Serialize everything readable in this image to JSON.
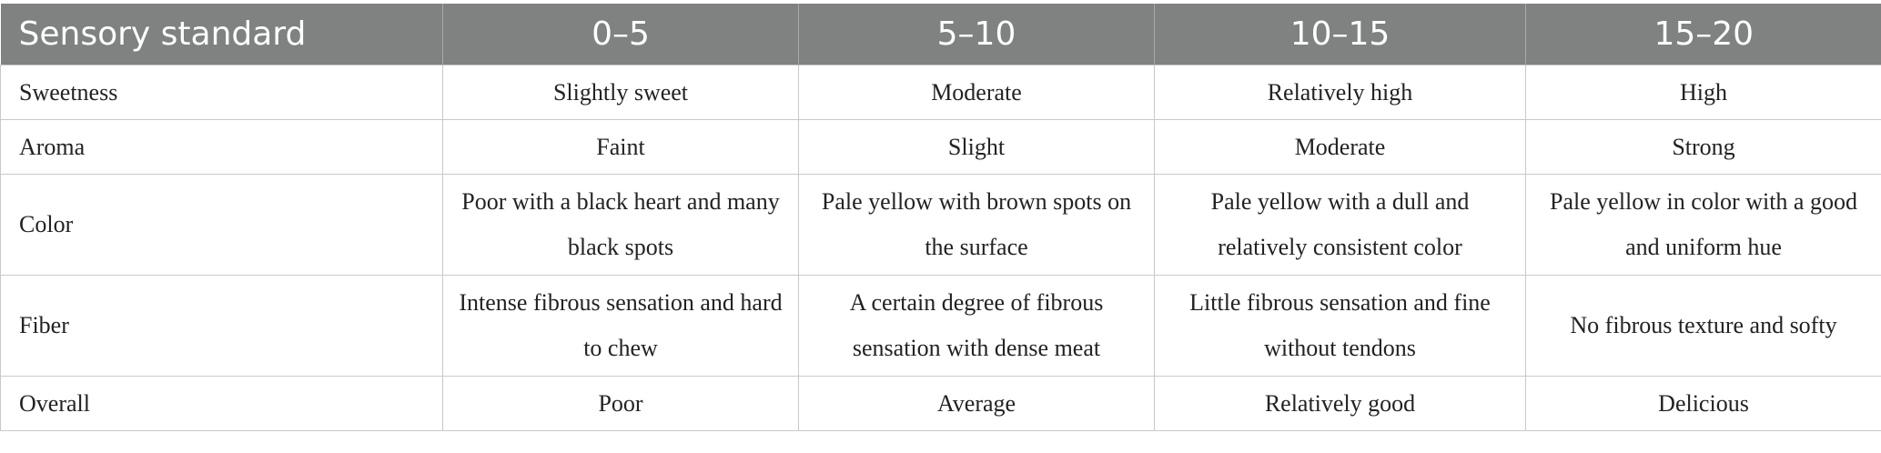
{
  "table": {
    "headers": [
      "Sensory standard",
      "0–5",
      "5–10",
      "10–15",
      "15–20"
    ],
    "rows": [
      {
        "label": "Sweetness",
        "cells": [
          "Slightly sweet",
          "Moderate",
          "Relatively high",
          "High"
        ]
      },
      {
        "label": "Aroma",
        "cells": [
          "Faint",
          "Slight",
          "Moderate",
          "Strong"
        ]
      },
      {
        "label": "Color",
        "cells": [
          "Poor with a black heart and many black spots",
          "Pale yellow with brown spots on the surface",
          "Pale yellow with a dull and relatively consistent color",
          "Pale yellow in color with a good and uniform hue"
        ]
      },
      {
        "label": "Fiber",
        "cells": [
          "Intense fibrous sensation and hard to chew",
          "A certain degree of fibrous sensation with dense meat",
          "Little fibrous sensation and fine without tendons",
          "No fibrous texture and softy"
        ]
      },
      {
        "label": "Overall",
        "cells": [
          "Poor",
          "Average",
          "Relatively good",
          "Delicious"
        ]
      }
    ]
  },
  "colors": {
    "header_bg": "#7f8280",
    "header_text": "#ffffff",
    "grid_line": "#c9c9c9",
    "body_text": "#222222"
  }
}
